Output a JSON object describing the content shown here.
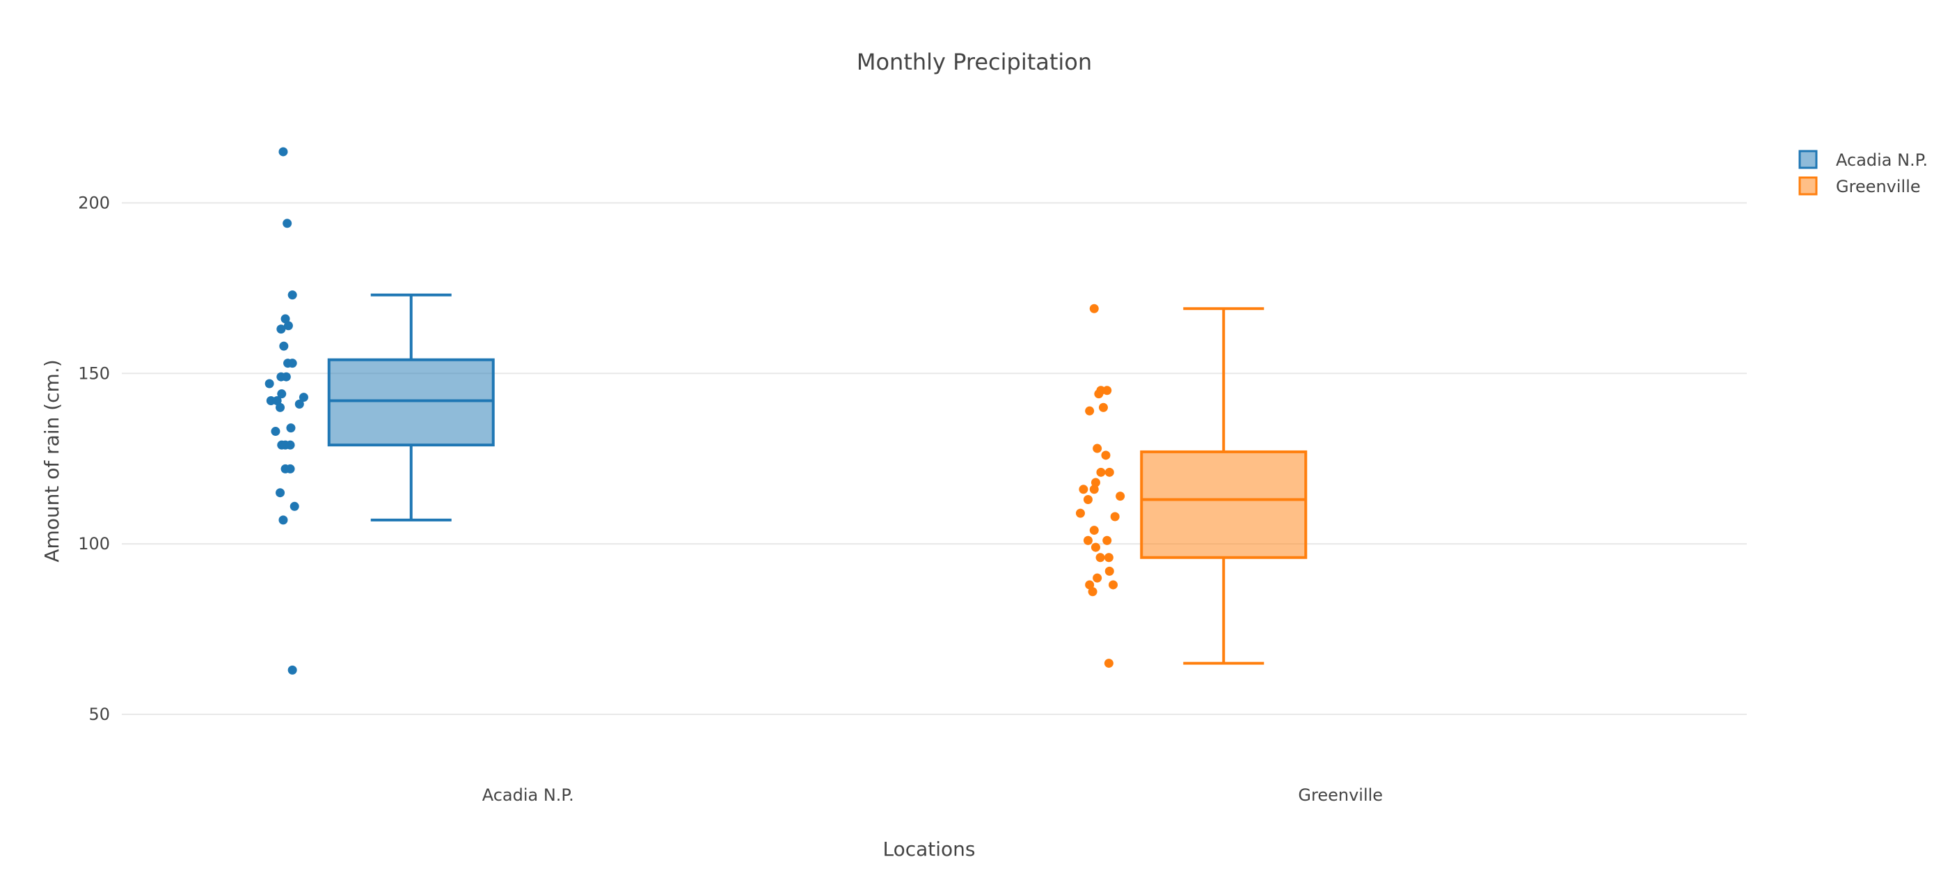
{
  "chart_data": {
    "type": "box",
    "title": "Monthly Precipitation",
    "xlabel": "Locations",
    "ylabel": "Amount of rain (cm.)",
    "categories": [
      "Acadia N.P.",
      "Greenville"
    ],
    "ylim": [
      30,
      235
    ],
    "yticks": [
      50,
      100,
      150,
      200
    ],
    "grid": true,
    "legend_position": "top-right",
    "boxpoints": "all",
    "series": [
      {
        "name": "Acadia N.P.",
        "category": "Acadia N.P.",
        "color": "#1f77b4",
        "fill": "rgba(31,119,180,0.5)",
        "stats": {
          "lowerfence": 107,
          "q1": 129,
          "median": 142,
          "q3": 154,
          "upperfence": 173
        },
        "points": [
          215,
          194,
          173,
          166,
          164,
          163,
          158,
          153,
          153,
          149,
          149,
          147,
          144,
          143,
          142,
          142,
          141,
          140,
          134,
          133,
          129,
          129,
          129,
          122,
          122,
          115,
          111,
          107,
          63
        ],
        "jitter": [
          0.05,
          0.18,
          0.35,
          0.12,
          0.22,
          -0.02,
          0.07,
          0.2,
          0.35,
          -0.02,
          0.15,
          -0.4,
          0.0,
          0.72,
          -0.35,
          -0.15,
          0.58,
          -0.05,
          0.3,
          -0.2,
          0.0,
          0.12,
          0.28,
          0.12,
          0.28,
          -0.05,
          0.42,
          0.05,
          0.35
        ]
      },
      {
        "name": "Greenville",
        "category": "Greenville",
        "color": "#ff7f0e",
        "fill": "rgba(255,127,14,0.5)",
        "stats": {
          "lowerfence": 65,
          "q1": 96,
          "median": 113,
          "q3": 127,
          "upperfence": 169
        },
        "points": [
          169,
          145,
          145,
          144,
          140,
          139,
          128,
          126,
          121,
          121,
          118,
          116,
          116,
          114,
          113,
          109,
          108,
          104,
          101,
          101,
          99,
          96,
          96,
          92,
          90,
          88,
          88,
          86,
          65
        ],
        "jitter": [
          0.0,
          0.42,
          0.22,
          0.15,
          0.3,
          -0.15,
          0.1,
          0.38,
          0.22,
          0.5,
          0.05,
          -0.35,
          0.0,
          0.85,
          -0.2,
          -0.45,
          0.68,
          0.0,
          -0.2,
          0.42,
          0.05,
          0.2,
          0.48,
          0.5,
          0.1,
          -0.15,
          0.62,
          -0.05,
          0.48
        ]
      }
    ]
  }
}
